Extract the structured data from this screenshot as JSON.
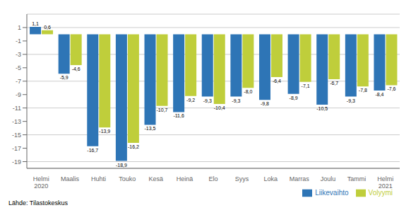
{
  "chart_data": {
    "type": "bar",
    "categories": [
      "Helmi\n2020",
      "Maalis",
      "Huhti",
      "Touko",
      "Kesä",
      "Heinä",
      "Elo",
      "Syys",
      "Loka",
      "Marras",
      "Joulu",
      "Tammi",
      "Helmi\n2021"
    ],
    "series": [
      {
        "name": "Liikevaihto",
        "color": "#2E75B6",
        "values": [
          1.1,
          -5.9,
          -16.7,
          -18.9,
          -13.5,
          -11.6,
          -9.3,
          -9.3,
          -9.8,
          -8.9,
          -10.5,
          -9.3,
          -8.4
        ],
        "value_labels": [
          "1,1",
          "-5,9",
          "-16,7",
          "-18,9",
          "-13,5",
          "-11,6",
          "-9,3",
          "-9,3",
          "-9,8",
          "-8,9",
          "-10,5",
          "-9,3",
          "-8,4"
        ]
      },
      {
        "name": "Volyymi",
        "color": "#BFCE3B",
        "values": [
          0.6,
          -4.6,
          -13.9,
          -16.2,
          -10.7,
          -9.2,
          -10.4,
          -8.0,
          -6.4,
          -7.1,
          -6.7,
          -7.8,
          -7.6
        ],
        "value_labels": [
          "0,6",
          "-4,6",
          "-13,9",
          "-16,2",
          "-10,7",
          "-9,2",
          "-10,4",
          "-8,0",
          "-6,4",
          "-7,1",
          "-6,7",
          "-7,8",
          "-7,6"
        ]
      }
    ],
    "ylim": [
      -20,
      3
    ],
    "yticks": [
      1,
      -1,
      -3,
      -5,
      -7,
      -9,
      -11,
      -13,
      -15,
      -17,
      -19
    ],
    "grid": true,
    "legend": "lower right",
    "data_labels": true,
    "annotations": [
      "Lähde: Tilastokeskus"
    ]
  }
}
